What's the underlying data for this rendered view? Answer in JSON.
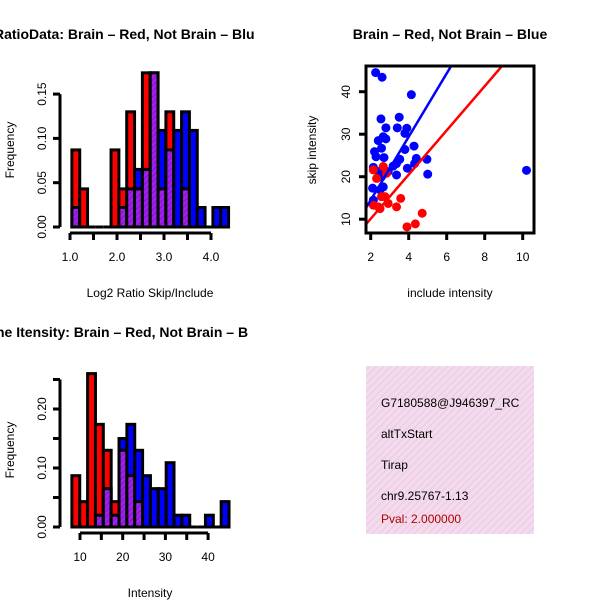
{
  "colors": {
    "red": "#ff0000",
    "blue": "#0000ff",
    "overlap": "#a020f0",
    "pval": "#b00000",
    "box_bg": "#f6d8f0"
  },
  "chart_data": [
    {
      "type": "bar",
      "title": "RatioData: Brain – Red, Not Brain – Blu",
      "xlabel": "Log2 Ratio Skip/Include",
      "ylabel": "Frequency",
      "xticks": [
        "1.0",
        "2.0",
        "3.0",
        "4.0"
      ],
      "yticks": [
        "0.00",
        "0.05",
        "0.10",
        "0.15"
      ],
      "bin_start": 1.04,
      "bin_width": 0.1667,
      "series": [
        {
          "name": "Brain",
          "color": "red",
          "values": [
            0.087,
            0.043,
            0,
            0,
            0,
            0.087,
            0.043,
            0.13,
            0.043,
            0.174,
            0.174,
            0.043,
            0.13,
            0,
            0.043,
            0,
            0,
            0,
            0,
            0
          ]
        },
        {
          "name": "Not Brain",
          "color": "blue",
          "values": [
            0.022,
            0,
            0,
            0,
            0,
            0,
            0.022,
            0.043,
            0.065,
            0.065,
            0.174,
            0.109,
            0.087,
            0.109,
            0.13,
            0.109,
            0.022,
            0,
            0.022,
            0.022
          ]
        }
      ]
    },
    {
      "type": "scatter",
      "title": "Brain – Red, Not Brain – Blue",
      "xlabel": "include intensity",
      "ylabel": "skip intensity",
      "xticks": [
        "2",
        "4",
        "6",
        "8",
        "10"
      ],
      "yticks": [
        "10",
        "20",
        "30",
        "40"
      ],
      "xlim": [
        1.76,
        10.5
      ],
      "ylim": [
        6.7,
        46
      ],
      "series": [
        {
          "name": "Not Brain",
          "color": "blue",
          "fit": {
            "slope": 7.45,
            "intercept": -0.4
          },
          "points": [
            [
              2.26,
              44.5
            ],
            [
              2.6,
              43.4
            ],
            [
              4.14,
              39.3
            ],
            [
              2.54,
              33.6
            ],
            [
              3.5,
              34
            ],
            [
              2.8,
              31.5
            ],
            [
              3.4,
              31.5
            ],
            [
              3.9,
              31.4
            ],
            [
              3.8,
              30.2
            ],
            [
              2.66,
              29.4
            ],
            [
              2.8,
              28.9
            ],
            [
              2.4,
              28.5
            ],
            [
              4.28,
              27.2
            ],
            [
              3.8,
              26.4
            ],
            [
              2.57,
              26.7
            ],
            [
              2.2,
              25.9
            ],
            [
              2.28,
              24.7
            ],
            [
              2.7,
              24.5
            ],
            [
              4.4,
              24.3
            ],
            [
              4.96,
              24.1
            ],
            [
              3.53,
              24.1
            ],
            [
              3.36,
              23.1
            ],
            [
              3.18,
              22.5
            ],
            [
              2.14,
              22.2
            ],
            [
              2.66,
              22
            ],
            [
              3.93,
              22
            ],
            [
              4.31,
              23.1
            ],
            [
              2.4,
              21.2
            ],
            [
              2.92,
              21.2
            ],
            [
              3.36,
              20.4
            ],
            [
              5.0,
              20.6
            ],
            [
              10.2,
              21.5
            ],
            [
              2.57,
              20
            ],
            [
              2.1,
              17.3
            ],
            [
              2.66,
              17.6
            ],
            [
              2.49,
              16.9
            ],
            [
              2.14,
              14.5
            ]
          ]
        },
        {
          "name": "Brain",
          "color": "red",
          "fit": {
            "slope": 5.2,
            "intercept": -0.3
          },
          "points": [
            [
              2.14,
              21.6
            ],
            [
              2.66,
              22.4
            ],
            [
              2.31,
              19.6
            ],
            [
              2.83,
              20.8
            ],
            [
              2.75,
              15.3
            ],
            [
              3.58,
              14.9
            ],
            [
              2.14,
              13.3
            ],
            [
              2.4,
              12.9
            ],
            [
              2.92,
              13.7
            ],
            [
              3.36,
              12.9
            ],
            [
              2.57,
              15.3
            ],
            [
              3.91,
              8.2
            ],
            [
              4.35,
              8.9
            ],
            [
              4.71,
              11.4
            ],
            [
              2.49,
              12.5
            ]
          ]
        }
      ]
    },
    {
      "type": "bar",
      "title": "ne Itensity: Brain – Red, Not Brain – B",
      "xlabel": "Intensity",
      "ylabel": "Frequency",
      "xticks": [
        "10",
        "20",
        "30",
        "40"
      ],
      "yticks": [
        "0.00",
        "0.10",
        "0.20"
      ],
      "bin_start": 8.1,
      "bin_width": 1.84,
      "series": [
        {
          "name": "Brain",
          "color": "red",
          "values": [
            0.087,
            0.043,
            0.26,
            0.174,
            0.13,
            0.043,
            0.13,
            0.087,
            0.043,
            0,
            0,
            0,
            0,
            0,
            0,
            0,
            0,
            0,
            0,
            0
          ]
        },
        {
          "name": "Not Brain",
          "color": "blue",
          "values": [
            0,
            0,
            0,
            0.02,
            0.065,
            0.02,
            0.15,
            0.174,
            0.13,
            0.087,
            0.065,
            0.065,
            0.109,
            0.02,
            0.02,
            0,
            0,
            0.02,
            0,
            0.043
          ]
        }
      ]
    }
  ],
  "info_box": {
    "id": "G7180588@J946397_RC",
    "event_type": "altTxStart",
    "gene": "Tirap",
    "location": "chr9.25767-1.13",
    "pval": "Pval: 2.000000"
  }
}
